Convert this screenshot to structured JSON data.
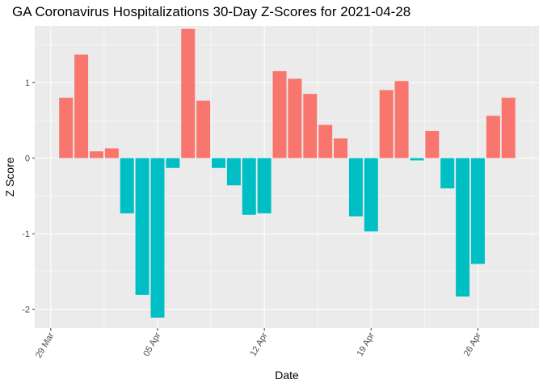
{
  "chart_data": {
    "type": "bar",
    "title": "GA Coronavirus Hospitalizations 30-Day Z-Scores for 2021-04-28",
    "xlabel": "Date",
    "ylabel": "Z Score",
    "ylim": [
      -2.25,
      1.75
    ],
    "xlim": [
      -1.05,
      32.0
    ],
    "y_ticks": [
      -2,
      -1,
      0,
      1
    ],
    "y_tick_labels": [
      "-2",
      "-1",
      "0",
      "1"
    ],
    "x_ticks": [
      0,
      7,
      14,
      21,
      28
    ],
    "x_tick_labels": [
      "29 Mar",
      "05 Apr",
      "12 Apr",
      "19 Apr",
      "26 Apr"
    ],
    "colors": {
      "positive": "#F8766D",
      "negative": "#00BFC4",
      "panel": "#EBEBEB",
      "grid": "#FFFFFF"
    },
    "categories": [
      "2021-03-30",
      "2021-03-31",
      "2021-04-01",
      "2021-04-02",
      "2021-04-03",
      "2021-04-04",
      "2021-04-05",
      "2021-04-06",
      "2021-04-07",
      "2021-04-08",
      "2021-04-09",
      "2021-04-10",
      "2021-04-11",
      "2021-04-12",
      "2021-04-13",
      "2021-04-14",
      "2021-04-15",
      "2021-04-16",
      "2021-04-17",
      "2021-04-18",
      "2021-04-19",
      "2021-04-20",
      "2021-04-21",
      "2021-04-22",
      "2021-04-23",
      "2021-04-24",
      "2021-04-25",
      "2021-04-26",
      "2021-04-27",
      "2021-04-28"
    ],
    "day_offsets": [
      1,
      2,
      3,
      4,
      5,
      6,
      7,
      8,
      9,
      10,
      11,
      12,
      13,
      14,
      15,
      16,
      17,
      18,
      19,
      20,
      21,
      22,
      23,
      24,
      25,
      26,
      27,
      28,
      29,
      30
    ],
    "values": [
      0.8,
      1.37,
      0.09,
      0.13,
      -0.73,
      -1.81,
      -2.11,
      -0.13,
      1.71,
      0.76,
      -0.13,
      -0.36,
      -0.75,
      -0.73,
      1.15,
      1.05,
      0.85,
      0.44,
      0.26,
      -0.77,
      -0.97,
      0.9,
      1.02,
      -0.03,
      0.36,
      -0.4,
      -1.83,
      -1.4,
      0.56,
      0.8
    ]
  }
}
